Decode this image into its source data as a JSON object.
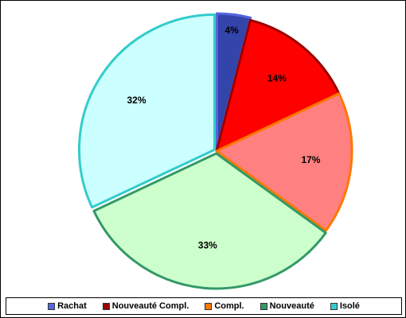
{
  "chart_data": {
    "type": "pie",
    "title": "",
    "slices": [
      {
        "name": "Rachat",
        "value": 4,
        "label": "4%",
        "fill": "#3344aa",
        "stroke": "#5566dd"
      },
      {
        "name": "Nouveauté Compl.",
        "value": 14,
        "label": "14%",
        "fill": "#ff0000",
        "stroke": "#990000"
      },
      {
        "name": "Compl.",
        "value": 17,
        "label": "17%",
        "fill": "#ff8080",
        "stroke": "#ff7700"
      },
      {
        "name": "Nouveauté",
        "value": 33,
        "label": "33%",
        "fill": "#ccffcc",
        "stroke": "#339966"
      },
      {
        "name": "Isolé",
        "value": 32,
        "label": "32%",
        "fill": "#ccffff",
        "stroke": "#33cccc"
      }
    ],
    "legend_position": "bottom",
    "exploded_slices": [
      "Rachat",
      "Nouveauté",
      "Isolé"
    ]
  }
}
